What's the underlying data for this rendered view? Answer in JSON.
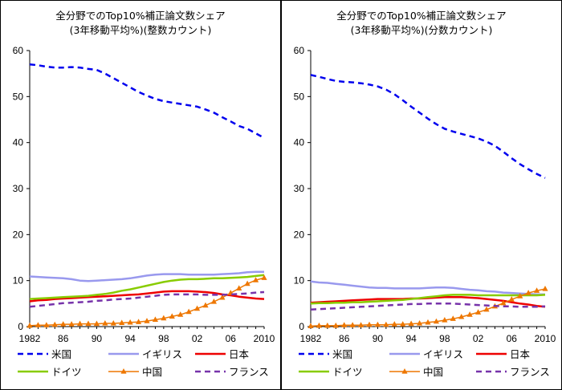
{
  "chart_data": [
    {
      "type": "line",
      "title": "全分野でのTop10%補正論文数シェア",
      "subtitle": "(3年移動平均%)(整数カウント)",
      "x": [
        1982,
        1983,
        1984,
        1985,
        1986,
        1987,
        1988,
        1989,
        1990,
        1991,
        1992,
        1993,
        1994,
        1995,
        1996,
        1997,
        1998,
        1999,
        2000,
        2001,
        2002,
        2003,
        2004,
        2005,
        2006,
        2007,
        2008,
        2009,
        2010
      ],
      "x_tick_labels": [
        "1982",
        "86",
        "90",
        "94",
        "98",
        "02",
        "06",
        "2010"
      ],
      "x_tick_values": [
        1982,
        1986,
        1990,
        1994,
        1998,
        2002,
        2006,
        2010
      ],
      "ylim": [
        0,
        60
      ],
      "y_ticks": [
        "0",
        "10",
        "20",
        "30",
        "40",
        "50",
        "60"
      ],
      "grid": false,
      "legend_position": "bottom",
      "series": [
        {
          "name": "米国",
          "color": "#0000ee",
          "style": "dashed",
          "values": [
            57.0,
            56.8,
            56.5,
            56.3,
            56.3,
            56.4,
            56.3,
            56.0,
            55.8,
            55.0,
            54.0,
            53.0,
            52.0,
            51.0,
            50.2,
            49.5,
            49.0,
            48.7,
            48.4,
            48.1,
            47.8,
            47.2,
            46.5,
            45.5,
            44.6,
            43.6,
            43.0,
            42.0,
            41.0
          ]
        },
        {
          "name": "イギリス",
          "color": "#9999ee",
          "style": "solid",
          "values": [
            10.9,
            10.8,
            10.7,
            10.6,
            10.5,
            10.3,
            10.0,
            9.9,
            10.0,
            10.1,
            10.2,
            10.3,
            10.5,
            10.8,
            11.1,
            11.3,
            11.4,
            11.4,
            11.4,
            11.3,
            11.3,
            11.3,
            11.3,
            11.4,
            11.5,
            11.6,
            11.8,
            11.9,
            11.9
          ]
        },
        {
          "name": "日本",
          "color": "#ee0000",
          "style": "solid",
          "values": [
            5.5,
            5.7,
            5.8,
            6.0,
            6.1,
            6.2,
            6.3,
            6.4,
            6.5,
            6.6,
            6.7,
            6.8,
            6.9,
            7.0,
            7.2,
            7.4,
            7.6,
            7.7,
            7.7,
            7.7,
            7.6,
            7.5,
            7.3,
            7.0,
            6.8,
            6.5,
            6.3,
            6.1,
            6.0
          ]
        },
        {
          "name": "ドイツ",
          "color": "#88cc00",
          "style": "solid",
          "values": [
            6.0,
            6.1,
            6.2,
            6.3,
            6.4,
            6.5,
            6.6,
            6.7,
            6.9,
            7.1,
            7.4,
            7.8,
            8.1,
            8.5,
            8.9,
            9.3,
            9.7,
            10.0,
            10.2,
            10.3,
            10.3,
            10.4,
            10.5,
            10.5,
            10.6,
            10.7,
            10.8,
            11.0,
            11.2
          ]
        },
        {
          "name": "中国",
          "color": "#ee7700",
          "style": "triangles",
          "values": [
            0.2,
            0.3,
            0.3,
            0.4,
            0.5,
            0.5,
            0.6,
            0.6,
            0.6,
            0.7,
            0.7,
            0.8,
            0.9,
            1.0,
            1.2,
            1.5,
            1.8,
            2.2,
            2.6,
            3.2,
            3.9,
            4.6,
            5.4,
            6.3,
            7.3,
            8.3,
            9.3,
            10.1,
            10.6
          ]
        },
        {
          "name": "フランス",
          "color": "#7733aa",
          "style": "dashed",
          "values": [
            4.3,
            4.5,
            4.7,
            4.9,
            5.1,
            5.2,
            5.3,
            5.4,
            5.6,
            5.7,
            5.9,
            6.0,
            6.1,
            6.3,
            6.5,
            6.7,
            6.9,
            7.0,
            7.0,
            7.0,
            7.0,
            6.9,
            6.9,
            6.9,
            7.0,
            7.1,
            7.2,
            7.4,
            7.5
          ]
        }
      ]
    },
    {
      "type": "line",
      "title": "全分野でのTop10%補正論文数シェア",
      "subtitle": "(3年移動平均%)(分数カウント)",
      "x": [
        1982,
        1983,
        1984,
        1985,
        1986,
        1987,
        1988,
        1989,
        1990,
        1991,
        1992,
        1993,
        1994,
        1995,
        1996,
        1997,
        1998,
        1999,
        2000,
        2001,
        2002,
        2003,
        2004,
        2005,
        2006,
        2007,
        2008,
        2009,
        2010
      ],
      "x_tick_labels": [
        "1982",
        "86",
        "90",
        "94",
        "98",
        "02",
        "06",
        "2010"
      ],
      "x_tick_values": [
        1982,
        1986,
        1990,
        1994,
        1998,
        2002,
        2006,
        2010
      ],
      "ylim": [
        0,
        60
      ],
      "y_ticks": [
        "0",
        "10",
        "20",
        "30",
        "40",
        "50",
        "60"
      ],
      "grid": false,
      "legend_position": "bottom",
      "series": [
        {
          "name": "米国",
          "color": "#0000ee",
          "style": "dashed",
          "values": [
            54.7,
            54.3,
            53.8,
            53.4,
            53.2,
            53.1,
            52.9,
            52.6,
            52.2,
            51.5,
            50.5,
            49.2,
            47.8,
            46.5,
            45.2,
            44.0,
            43.0,
            42.4,
            41.9,
            41.4,
            40.9,
            40.2,
            39.3,
            38.0,
            36.6,
            35.3,
            34.2,
            33.2,
            32.3
          ]
        },
        {
          "name": "イギリス",
          "color": "#9999ee",
          "style": "solid",
          "values": [
            9.8,
            9.6,
            9.5,
            9.3,
            9.1,
            8.9,
            8.7,
            8.5,
            8.4,
            8.4,
            8.3,
            8.3,
            8.3,
            8.3,
            8.4,
            8.5,
            8.5,
            8.4,
            8.2,
            8.0,
            7.9,
            7.7,
            7.6,
            7.4,
            7.3,
            7.2,
            7.1,
            7.0,
            7.0
          ]
        },
        {
          "name": "日本",
          "color": "#ee0000",
          "style": "solid",
          "values": [
            5.2,
            5.3,
            5.4,
            5.5,
            5.6,
            5.7,
            5.8,
            5.9,
            6.0,
            6.0,
            6.0,
            6.0,
            6.1,
            6.1,
            6.2,
            6.3,
            6.4,
            6.4,
            6.4,
            6.3,
            6.2,
            6.0,
            5.8,
            5.6,
            5.3,
            5.0,
            4.8,
            4.5,
            4.3
          ]
        },
        {
          "name": "ドイツ",
          "color": "#88cc00",
          "style": "solid",
          "values": [
            5.0,
            5.1,
            5.1,
            5.2,
            5.2,
            5.3,
            5.3,
            5.4,
            5.5,
            5.6,
            5.7,
            5.8,
            6.0,
            6.2,
            6.4,
            6.6,
            6.8,
            6.9,
            6.9,
            6.9,
            6.8,
            6.8,
            6.8,
            6.8,
            6.8,
            6.8,
            6.8,
            6.8,
            6.9
          ]
        },
        {
          "name": "中国",
          "color": "#ee7700",
          "style": "triangles",
          "values": [
            0.1,
            0.2,
            0.2,
            0.2,
            0.3,
            0.3,
            0.3,
            0.4,
            0.4,
            0.4,
            0.5,
            0.5,
            0.6,
            0.7,
            0.9,
            1.1,
            1.4,
            1.7,
            2.1,
            2.6,
            3.1,
            3.7,
            4.4,
            5.1,
            5.9,
            6.6,
            7.3,
            7.8,
            8.2
          ]
        },
        {
          "name": "フランス",
          "color": "#7733aa",
          "style": "dashed",
          "values": [
            3.7,
            3.8,
            3.9,
            4.0,
            4.1,
            4.2,
            4.3,
            4.4,
            4.5,
            4.6,
            4.7,
            4.8,
            4.9,
            4.9,
            5.0,
            5.0,
            5.0,
            5.0,
            4.9,
            4.8,
            4.7,
            4.6,
            4.5,
            4.4,
            4.4,
            4.3,
            4.3,
            4.3,
            4.4
          ]
        }
      ]
    }
  ]
}
